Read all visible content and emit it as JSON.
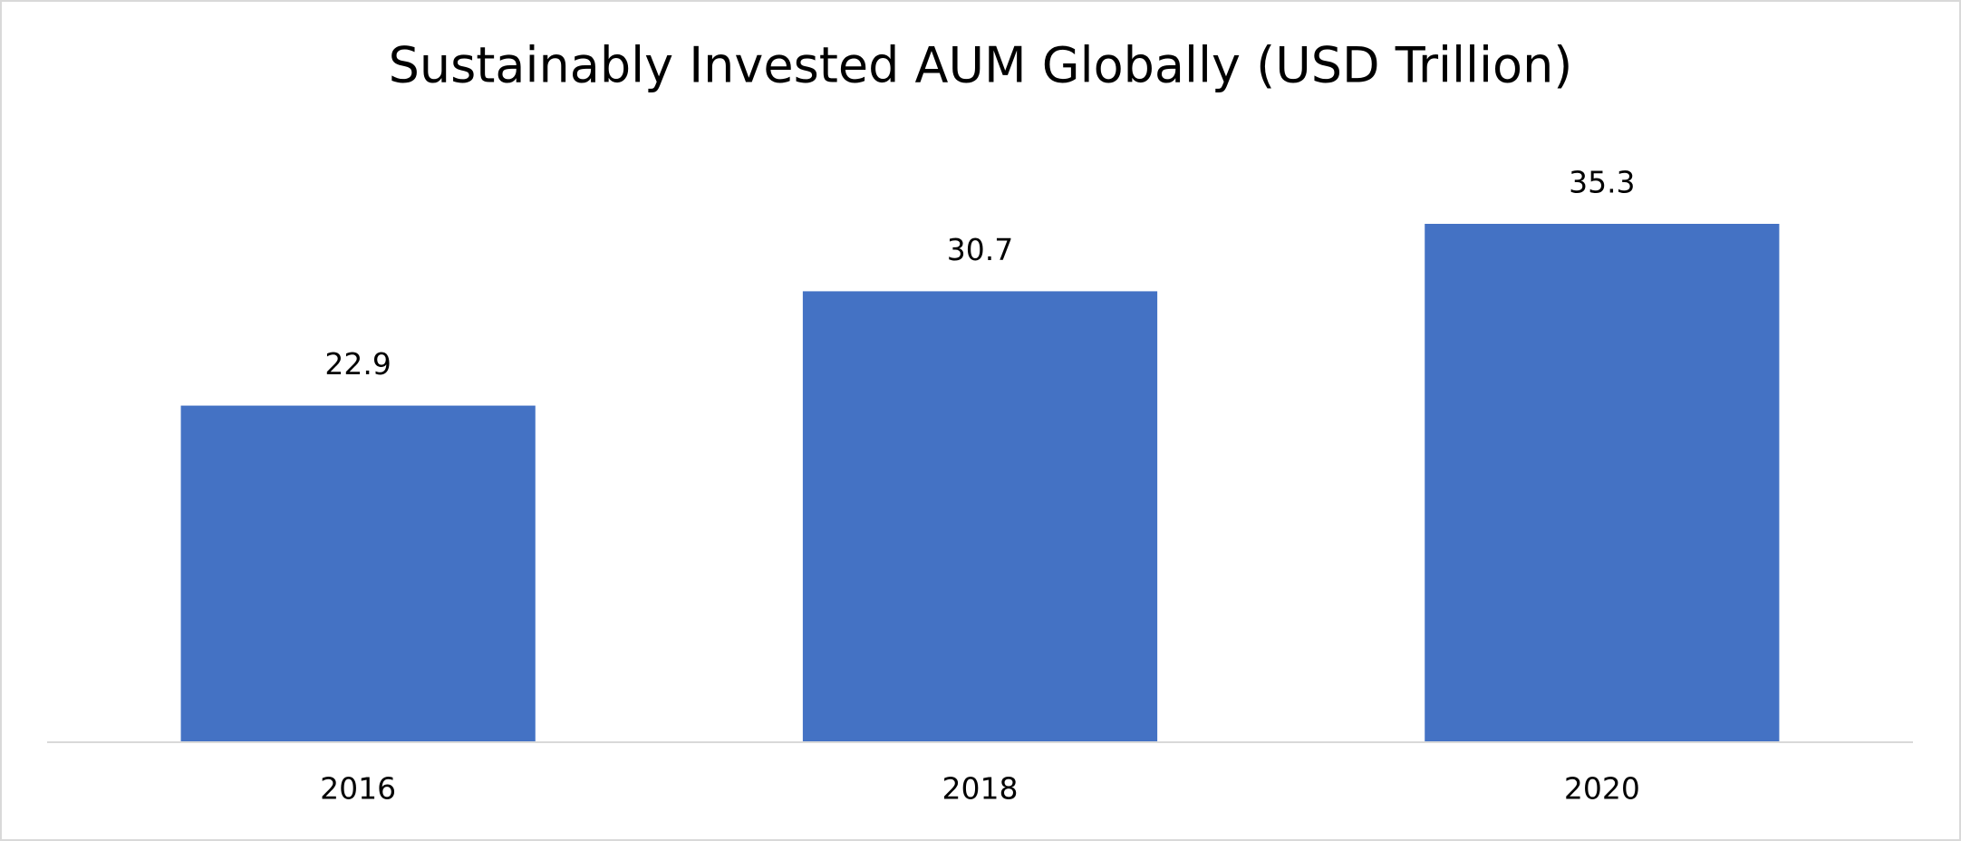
{
  "chart_data": {
    "type": "bar",
    "title": "Sustainably Invested AUM Globally (USD Trillion)",
    "categories": [
      "2016",
      "2018",
      "2020"
    ],
    "values": [
      22.9,
      30.7,
      35.3
    ],
    "color": "#4472c4"
  }
}
